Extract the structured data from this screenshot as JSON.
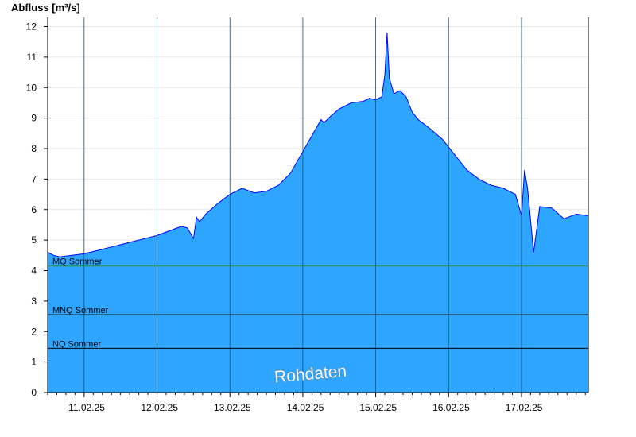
{
  "chart_data": {
    "type": "area",
    "ylabel": "Abfluss [m³/s]",
    "ylim": [
      0,
      12.3
    ],
    "yticks": [
      0,
      1,
      2,
      3,
      4,
      5,
      6,
      7,
      8,
      9,
      10,
      11,
      12
    ],
    "xlim": [
      "2025-02-10T12:00",
      "2025-02-17T22:00"
    ],
    "day_boundaries": [
      "2025-02-11T00:00",
      "2025-02-12T00:00",
      "2025-02-13T00:00",
      "2025-02-14T00:00",
      "2025-02-15T00:00",
      "2025-02-16T00:00",
      "2025-02-17T00:00"
    ],
    "day_labels": [
      {
        "label": "11.02.25",
        "at": "2025-02-10T12:00"
      },
      {
        "label": "12.02.25",
        "at": "2025-02-11T12:00"
      },
      {
        "label": "13.02.25",
        "at": "2025-02-12T12:00"
      },
      {
        "label": "14.02.25",
        "at": "2025-02-13T12:00"
      },
      {
        "label": "15.02.25",
        "at": "2025-02-14T12:00"
      },
      {
        "label": "16.02.25",
        "at": "2025-02-15T12:00"
      },
      {
        "label": "17.02.25",
        "at": "2025-02-16T12:00"
      }
    ],
    "grid": "horizontal",
    "series": [
      {
        "color_fill": "#2ea6ff",
        "color_line": "#0000ff",
        "points": [
          [
            "2025-02-10T12:00",
            4.6
          ],
          [
            "2025-02-10T14:00",
            4.5
          ],
          [
            "2025-02-10T16:00",
            4.45
          ],
          [
            "2025-02-10T20:00",
            4.5
          ],
          [
            "2025-02-11T00:00",
            4.55
          ],
          [
            "2025-02-11T04:00",
            4.65
          ],
          [
            "2025-02-11T08:00",
            4.75
          ],
          [
            "2025-02-11T12:00",
            4.85
          ],
          [
            "2025-02-11T16:00",
            4.95
          ],
          [
            "2025-02-11T20:00",
            5.05
          ],
          [
            "2025-02-12T00:00",
            5.15
          ],
          [
            "2025-02-12T04:00",
            5.3
          ],
          [
            "2025-02-12T08:00",
            5.45
          ],
          [
            "2025-02-12T10:00",
            5.4
          ],
          [
            "2025-02-12T12:00",
            5.05
          ],
          [
            "2025-02-12T13:00",
            5.75
          ],
          [
            "2025-02-12T14:00",
            5.6
          ],
          [
            "2025-02-12T16:00",
            5.85
          ],
          [
            "2025-02-12T20:00",
            6.2
          ],
          [
            "2025-02-13T00:00",
            6.5
          ],
          [
            "2025-02-13T04:00",
            6.7
          ],
          [
            "2025-02-13T08:00",
            6.55
          ],
          [
            "2025-02-13T12:00",
            6.6
          ],
          [
            "2025-02-13T16:00",
            6.8
          ],
          [
            "2025-02-13T20:00",
            7.2
          ],
          [
            "2025-02-14T00:00",
            7.9
          ],
          [
            "2025-02-14T04:00",
            8.6
          ],
          [
            "2025-02-14T06:00",
            8.95
          ],
          [
            "2025-02-14T07:00",
            8.85
          ],
          [
            "2025-02-14T09:00",
            9.05
          ],
          [
            "2025-02-14T12:00",
            9.3
          ],
          [
            "2025-02-14T16:00",
            9.5
          ],
          [
            "2025-02-14T20:00",
            9.55
          ],
          [
            "2025-02-14T22:00",
            9.65
          ],
          [
            "2025-02-15T00:00",
            9.6
          ],
          [
            "2025-02-15T02:00",
            9.7
          ],
          [
            "2025-02-15T03:00",
            10.4
          ],
          [
            "2025-02-15T03:45",
            11.8
          ],
          [
            "2025-02-15T04:30",
            10.3
          ],
          [
            "2025-02-15T06:00",
            9.8
          ],
          [
            "2025-02-15T08:00",
            9.9
          ],
          [
            "2025-02-15T10:00",
            9.7
          ],
          [
            "2025-02-15T12:00",
            9.2
          ],
          [
            "2025-02-15T14:00",
            8.95
          ],
          [
            "2025-02-15T18:00",
            8.65
          ],
          [
            "2025-02-15T22:00",
            8.3
          ],
          [
            "2025-02-16T02:00",
            7.8
          ],
          [
            "2025-02-16T06:00",
            7.3
          ],
          [
            "2025-02-16T10:00",
            7.0
          ],
          [
            "2025-02-16T14:00",
            6.8
          ],
          [
            "2025-02-16T18:00",
            6.7
          ],
          [
            "2025-02-16T22:00",
            6.5
          ],
          [
            "2025-02-17T00:00",
            5.8
          ],
          [
            "2025-02-17T01:00",
            7.3
          ],
          [
            "2025-02-17T02:00",
            6.7
          ],
          [
            "2025-02-17T04:00",
            4.6
          ],
          [
            "2025-02-17T06:00",
            6.1
          ],
          [
            "2025-02-17T10:00",
            6.05
          ],
          [
            "2025-02-17T14:00",
            5.7
          ],
          [
            "2025-02-17T18:00",
            5.85
          ],
          [
            "2025-02-17T22:00",
            5.8
          ]
        ]
      }
    ],
    "reference_lines": [
      {
        "label": "MQ Sommer",
        "value": 4.15,
        "color": "#2e8b2e"
      },
      {
        "label": "MNQ Sommer",
        "value": 2.55,
        "color": "#000000"
      },
      {
        "label": "NQ Sommer",
        "value": 1.45,
        "color": "#000000"
      }
    ],
    "watermark": "Rohdaten"
  }
}
